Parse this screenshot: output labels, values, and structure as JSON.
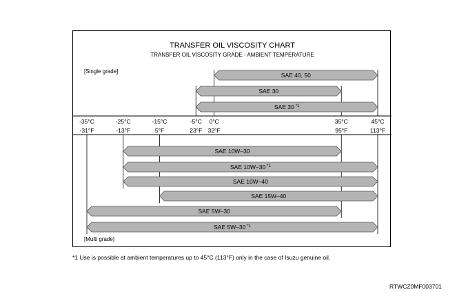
{
  "chart_data": {
    "type": "range-bar",
    "title": "TRANSFER OIL VISCOSITY CHART",
    "subtitle": "TRANSFER OIL VISCOSITY GRADE - AMBIENT TEMPERATURE",
    "single_grade_label": "[Single grade]",
    "multi_grade_label": "[Multi grade]",
    "axis": {
      "range_c": [
        -35,
        45
      ],
      "ticks": [
        {
          "c": -35,
          "celsius": "-35°C",
          "fahrenheit": "-31°F"
        },
        {
          "c": -25,
          "celsius": "-25°C",
          "fahrenheit": "-13°F"
        },
        {
          "c": -15,
          "celsius": "-15°C",
          "fahrenheit": "5°F"
        },
        {
          "c": -5,
          "celsius": "-5°C",
          "fahrenheit": "23°F"
        },
        {
          "c": 0,
          "celsius": "0°C",
          "fahrenheit": "32°F"
        },
        {
          "c": 35,
          "celsius": "35°C",
          "fahrenheit": "95°F"
        },
        {
          "c": 45,
          "celsius": "45°C",
          "fahrenheit": "113°F"
        }
      ]
    },
    "single_grade": [
      {
        "label": "SAE 40, 50",
        "from_c": 0,
        "to_c": 45,
        "note": ""
      },
      {
        "label": "SAE 30",
        "from_c": -5,
        "to_c": 35,
        "note": ""
      },
      {
        "label": "SAE 30",
        "from_c": -5,
        "to_c": 45,
        "note": "*1"
      }
    ],
    "multi_grade": [
      {
        "label": "SAE 10W–30",
        "from_c": -25,
        "to_c": 35,
        "note": ""
      },
      {
        "label": "SAE 10W–30",
        "from_c": -25,
        "to_c": 45,
        "note": "*1"
      },
      {
        "label": "SAE 10W–40",
        "from_c": -25,
        "to_c": 45,
        "note": ""
      },
      {
        "label": "SAE 15W–40",
        "from_c": -15,
        "to_c": 45,
        "note": ""
      },
      {
        "label": "SAE 5W–30",
        "from_c": -35,
        "to_c": 35,
        "note": ""
      },
      {
        "label": "SAE 5W–30",
        "from_c": -35,
        "to_c": 45,
        "note": "*1"
      }
    ],
    "colors": {
      "bar_fill": "#b4b4b4",
      "bar_stroke": "#555555",
      "line": "#000000"
    }
  },
  "footnote": "*1 Use is possible at ambient temperatures up to 45°C (113°F) only in the case of Isuzu genuine oil.",
  "document_code": "RTWCZ0MF003701"
}
